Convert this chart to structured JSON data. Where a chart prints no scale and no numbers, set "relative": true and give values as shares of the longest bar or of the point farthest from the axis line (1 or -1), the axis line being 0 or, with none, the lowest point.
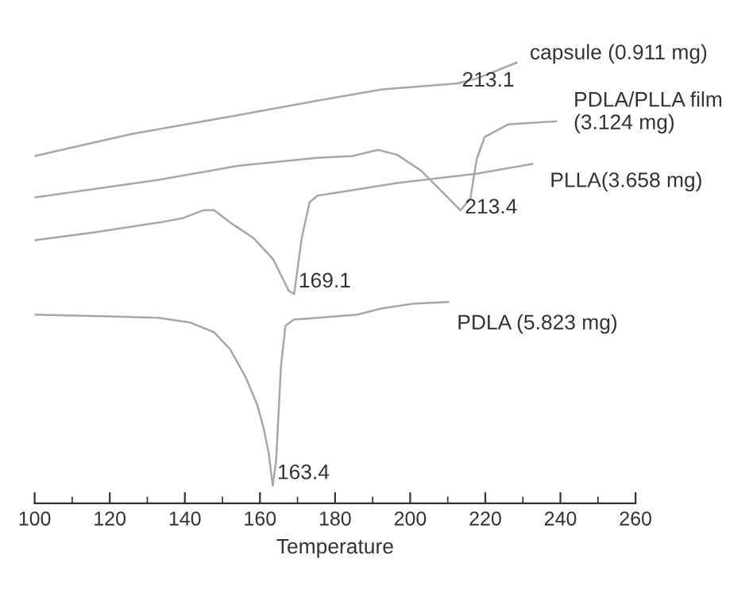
{
  "chart_data": {
    "type": "line",
    "relative": true,
    "xlabel": "Temperature",
    "xlim": [
      100,
      260
    ],
    "xticks": [
      100,
      120,
      140,
      160,
      180,
      200,
      220,
      240,
      260
    ],
    "grid": false,
    "legend": false,
    "marker": "none",
    "line_style": "solid",
    "tick_labels": "x",
    "series": [
      {
        "name": "capsule (0.911 mg)",
        "color": "#a8a8a8",
        "x": [
          100,
          125.8,
          154.2,
          175.3,
          192.3,
          212.6,
          217.7,
          221.9,
          228.3
        ],
        "values": [
          0.788,
          0.838,
          0.881,
          0.914,
          0.939,
          0.953,
          0.964,
          0.978,
          1.0
        ]
      },
      {
        "name": "PDLA/PLLA film\n(3.124 mg)",
        "color": "#a8a8a8",
        "x": [
          100,
          133.0,
          154.2,
          175.3,
          184.7,
          191.4,
          196.5,
          202.9,
          209.2,
          213.4,
          216.0,
          217.7,
          219.8,
          226.1,
          238.8
        ],
        "values": [
          0.694,
          0.734,
          0.766,
          0.784,
          0.788,
          0.802,
          0.791,
          0.755,
          0.701,
          0.665,
          0.691,
          0.781,
          0.831,
          0.86,
          0.867
        ]
      },
      {
        "name": "PLLA(3.658 mg)",
        "color": "#a8a8a8",
        "x": [
          100,
          116.1,
          133.0,
          139.4,
          144.9,
          147.8,
          152.1,
          158.4,
          163.5,
          166.0,
          167.7,
          169.1,
          171.1,
          173.2,
          175.3,
          196.5,
          217.7,
          232.5
        ],
        "values": [
          0.597,
          0.615,
          0.637,
          0.647,
          0.665,
          0.665,
          0.637,
          0.601,
          0.554,
          0.511,
          0.482,
          0.475,
          0.601,
          0.683,
          0.698,
          0.727,
          0.748,
          0.77
        ]
      },
      {
        "name": "PDLA (5.823 mg)",
        "color": "#a8a8a8",
        "x": [
          100,
          120.3,
          133.0,
          141.5,
          147.8,
          152.1,
          156.3,
          159.3,
          161.0,
          162.3,
          163.4,
          164.3,
          165.6,
          166.8,
          169.0,
          175.3,
          185.9,
          192.3,
          200.7,
          210.1
        ],
        "values": [
          0.428,
          0.424,
          0.421,
          0.41,
          0.388,
          0.349,
          0.284,
          0.223,
          0.169,
          0.115,
          0.04,
          0.097,
          0.313,
          0.403,
          0.417,
          0.421,
          0.428,
          0.442,
          0.453,
          0.457
        ]
      }
    ],
    "annotations": [
      {
        "text": "213.1",
        "x": 212.6,
        "y": 0.953
      },
      {
        "text": "213.4",
        "x": 213.4,
        "y": 0.665
      },
      {
        "text": "169.1",
        "x": 169.1,
        "y": 0.475
      },
      {
        "text": "163.4",
        "x": 163.4,
        "y": 0.04
      }
    ]
  }
}
